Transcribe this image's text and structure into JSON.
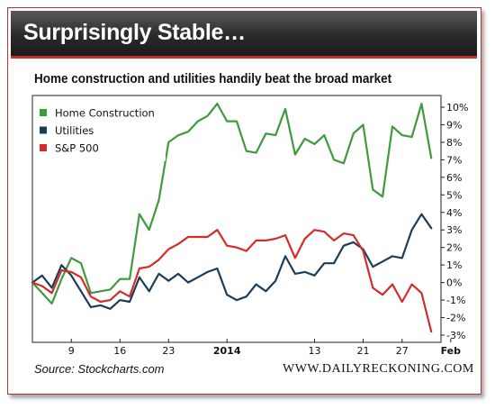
{
  "banner": {
    "title": "Surprisingly Stable…"
  },
  "subtitle": "Home construction and utilities handily beat the broad market",
  "source": "Source: Stockcharts.com",
  "website": "WWW.DAILYRECKONING.COM",
  "chart_data": {
    "type": "line",
    "title": "Home construction and utilities handily beat the broad market",
    "xlabel": "",
    "ylabel": "",
    "ylim": [
      -3,
      10
    ],
    "yticks": [
      "10%",
      "9%",
      "8%",
      "7%",
      "6%",
      "5%",
      "4%",
      "3%",
      "2%",
      "1%",
      "0%",
      "-1%",
      "-2%",
      "-3%"
    ],
    "ytick_values": [
      10,
      9,
      8,
      7,
      6,
      5,
      4,
      3,
      2,
      1,
      0,
      -1,
      -2,
      -3
    ],
    "xticks": [
      {
        "label": "9",
        "index": 4,
        "bold": false
      },
      {
        "label": "16",
        "index": 9,
        "bold": false
      },
      {
        "label": "23",
        "index": 14,
        "bold": false
      },
      {
        "label": "2014",
        "index": 20,
        "bold": true
      },
      {
        "label": "13",
        "index": 29,
        "bold": false
      },
      {
        "label": "21",
        "index": 34,
        "bold": false
      },
      {
        "label": "27",
        "index": 38,
        "bold": false
      },
      {
        "label": "Feb",
        "index": 43,
        "bold": true
      }
    ],
    "grid": false,
    "legend_position": "top-left",
    "series": [
      {
        "name": "Home Construction",
        "color": "#3d9a3d",
        "values": [
          0,
          -0.6,
          -1.2,
          0.2,
          1.4,
          1.1,
          -0.6,
          -0.5,
          -0.4,
          0.2,
          0.2,
          3.9,
          3.0,
          4.7,
          8.0,
          8.4,
          8.6,
          9.2,
          9.5,
          10.2,
          9.2,
          9.2,
          7.5,
          7.4,
          8.5,
          8.4,
          9.9,
          7.3,
          8.2,
          7.9,
          8.4,
          7.0,
          6.8,
          8.5,
          9.0,
          5.3,
          4.9,
          8.9,
          8.4,
          8.3,
          10.2,
          7.1
        ]
      },
      {
        "name": "Utilities",
        "color": "#1c3d57",
        "values": [
          0,
          0.4,
          -0.3,
          1.0,
          0.4,
          -0.5,
          -1.4,
          -1.3,
          -1.5,
          -1.0,
          -1.1,
          0.3,
          -0.5,
          0.5,
          0.1,
          0.5,
          0,
          0.3,
          0.6,
          0.8,
          -0.7,
          -1.0,
          -0.8,
          -0.1,
          -0.5,
          0.1,
          1.5,
          0.5,
          0.6,
          0.4,
          1.1,
          1.1,
          2.1,
          2.3,
          1.9,
          0.9,
          1.2,
          1.5,
          1.4,
          3.0,
          3.9,
          3.1
        ]
      },
      {
        "name": "S&P 500",
        "color": "#d42b2b",
        "values": [
          0,
          -0.2,
          -0.6,
          0.7,
          0.6,
          0.3,
          -0.8,
          -1.1,
          -1.0,
          -0.5,
          -0.8,
          0.8,
          0.9,
          1.3,
          1.9,
          2.2,
          2.6,
          2.6,
          2.6,
          3.0,
          2.1,
          2.0,
          1.8,
          2.4,
          2.4,
          2.5,
          2.7,
          1.4,
          2.5,
          3.0,
          2.9,
          2.4,
          2.8,
          2.7,
          1.8,
          -0.3,
          -0.7,
          -0.1,
          -1.1,
          -0.1,
          -0.6,
          -2.8
        ]
      }
    ]
  }
}
